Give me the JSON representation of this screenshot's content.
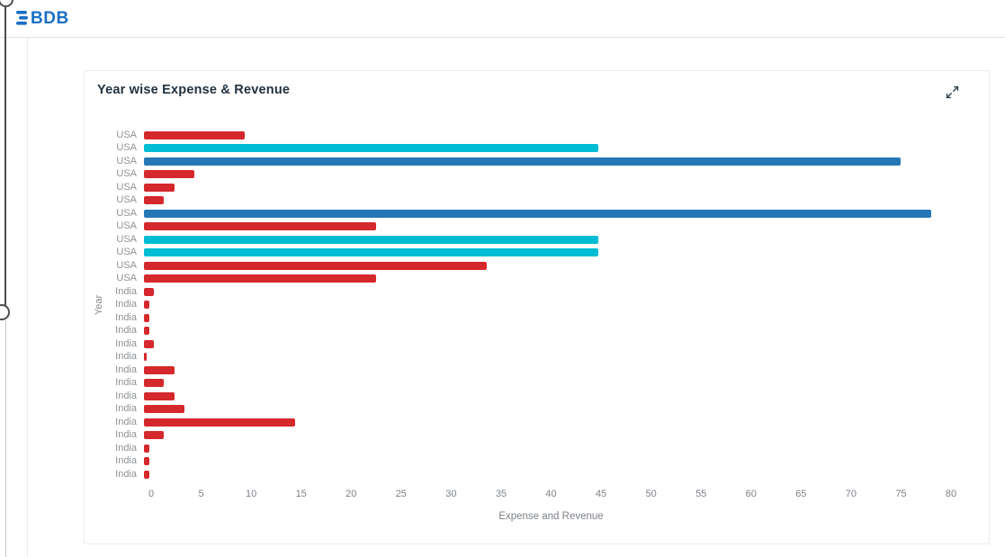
{
  "header": {
    "logo": "BDB"
  },
  "chart_card": {
    "title": "Year wise Expense & Revenue"
  },
  "chart_data": {
    "type": "bar",
    "orientation": "horizontal",
    "title": "Year wise Expense & Revenue",
    "xlabel": "Expense and Revenue",
    "ylabel": "Year",
    "xlim": [
      0,
      80
    ],
    "xticks": [
      0,
      5,
      10,
      15,
      20,
      25,
      30,
      35,
      40,
      45,
      50,
      55,
      60,
      65,
      70,
      75,
      80
    ],
    "grid": false,
    "legend": "none",
    "colors": {
      "red": "#d5282c",
      "cyan": "#00bdd4",
      "blue": "#2577b5"
    },
    "bars": [
      {
        "label": "USA",
        "value": 10,
        "color": "red"
      },
      {
        "label": "USA",
        "value": 45,
        "color": "cyan"
      },
      {
        "label": "USA",
        "value": 75,
        "color": "blue"
      },
      {
        "label": "USA",
        "value": 5,
        "color": "red"
      },
      {
        "label": "USA",
        "value": 3,
        "color": "red"
      },
      {
        "label": "USA",
        "value": 2,
        "color": "red"
      },
      {
        "label": "USA",
        "value": 78,
        "color": "blue"
      },
      {
        "label": "USA",
        "value": 23,
        "color": "red"
      },
      {
        "label": "USA",
        "value": 45,
        "color": "cyan"
      },
      {
        "label": "USA",
        "value": 45,
        "color": "cyan"
      },
      {
        "label": "USA",
        "value": 34,
        "color": "red"
      },
      {
        "label": "USA",
        "value": 23,
        "color": "red"
      },
      {
        "label": "India",
        "value": 1,
        "color": "red"
      },
      {
        "label": "India",
        "value": 0.5,
        "color": "red"
      },
      {
        "label": "India",
        "value": 0.5,
        "color": "red"
      },
      {
        "label": "India",
        "value": 0.5,
        "color": "red"
      },
      {
        "label": "India",
        "value": 1,
        "color": "red"
      },
      {
        "label": "India",
        "value": 0.3,
        "color": "red"
      },
      {
        "label": "India",
        "value": 3,
        "color": "red"
      },
      {
        "label": "India",
        "value": 2,
        "color": "red"
      },
      {
        "label": "India",
        "value": 3,
        "color": "red"
      },
      {
        "label": "India",
        "value": 4,
        "color": "red"
      },
      {
        "label": "India",
        "value": 15,
        "color": "red"
      },
      {
        "label": "India",
        "value": 2,
        "color": "red"
      },
      {
        "label": "India",
        "value": 0.5,
        "color": "red"
      },
      {
        "label": "India",
        "value": 0.5,
        "color": "red"
      },
      {
        "label": "India",
        "value": 0.5,
        "color": "red"
      }
    ]
  }
}
